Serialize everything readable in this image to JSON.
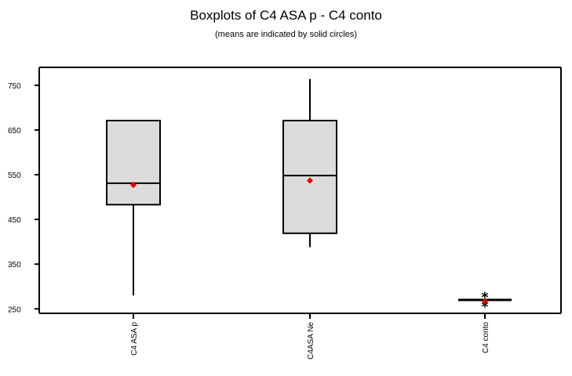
{
  "chart_data": {
    "type": "boxplot",
    "title": "Boxplots of C4 ASA p - C4 conto",
    "subtitle": "(means are indicated by solid circles)",
    "xlabel": "",
    "ylabel": "",
    "ylim": [
      240,
      790
    ],
    "yticks": [
      250,
      350,
      450,
      550,
      650,
      750
    ],
    "grid": false,
    "colors": {
      "box_fill": "#dcdcdc",
      "line": "#000000",
      "mean": "#e00000"
    },
    "categories": [
      "C4 ASA p",
      "C4ASA Ne",
      "C4 conto"
    ],
    "boxes": [
      {
        "category": "C4 ASA p",
        "whisker_low": 280,
        "q1": 483,
        "median": 531,
        "q3": 671,
        "whisker_high": 671,
        "mean": 527,
        "outliers": []
      },
      {
        "category": "C4ASA Ne",
        "whisker_low": 388,
        "q1": 419,
        "median": 548,
        "q3": 671,
        "whisker_high": 764,
        "mean": 537,
        "outliers": []
      },
      {
        "category": "C4 conto",
        "whisker_low": 270,
        "q1": 270,
        "median": 270,
        "q3": 270,
        "whisker_high": 270,
        "mean": 267,
        "outliers": [
          278,
          257
        ]
      }
    ]
  }
}
